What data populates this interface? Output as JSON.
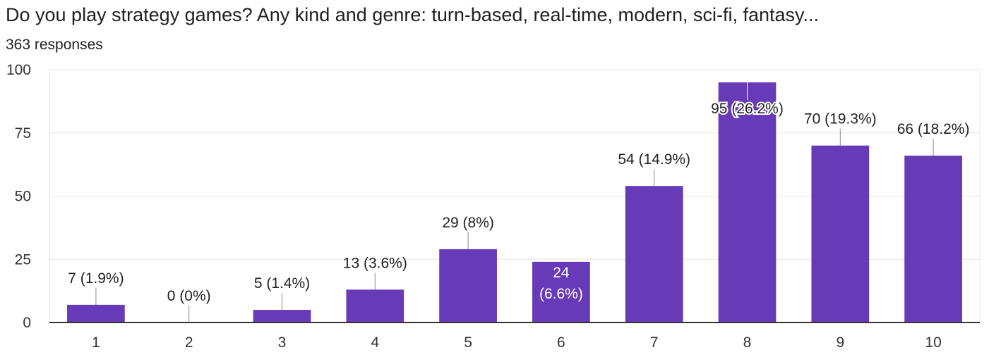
{
  "question": "Do you play strategy games? Any kind and genre: turn-based, real-time, modern, sci-fi,  fantasy...",
  "responses": "363 responses",
  "colors": {
    "bar": "#673ab7",
    "grid": "#e6e6e6",
    "axis": "#333333"
  },
  "chart_data": {
    "type": "bar",
    "categories": [
      "1",
      "2",
      "3",
      "4",
      "5",
      "6",
      "7",
      "8",
      "9",
      "10"
    ],
    "values": [
      7,
      0,
      5,
      13,
      29,
      24,
      54,
      95,
      70,
      66
    ],
    "labels": [
      "7 (1.9%)",
      "0 (0%)",
      "5 (1.4%)",
      "13 (3.6%)",
      "29 (8%)",
      "24 (6.6%)",
      "54 (14.9%)",
      "95 (26.2%)",
      "70 (19.3%)",
      "66 (18.2%)"
    ],
    "yticks": [
      0,
      25,
      50,
      75,
      100
    ],
    "ylim": [
      0,
      100
    ],
    "grid": true
  }
}
